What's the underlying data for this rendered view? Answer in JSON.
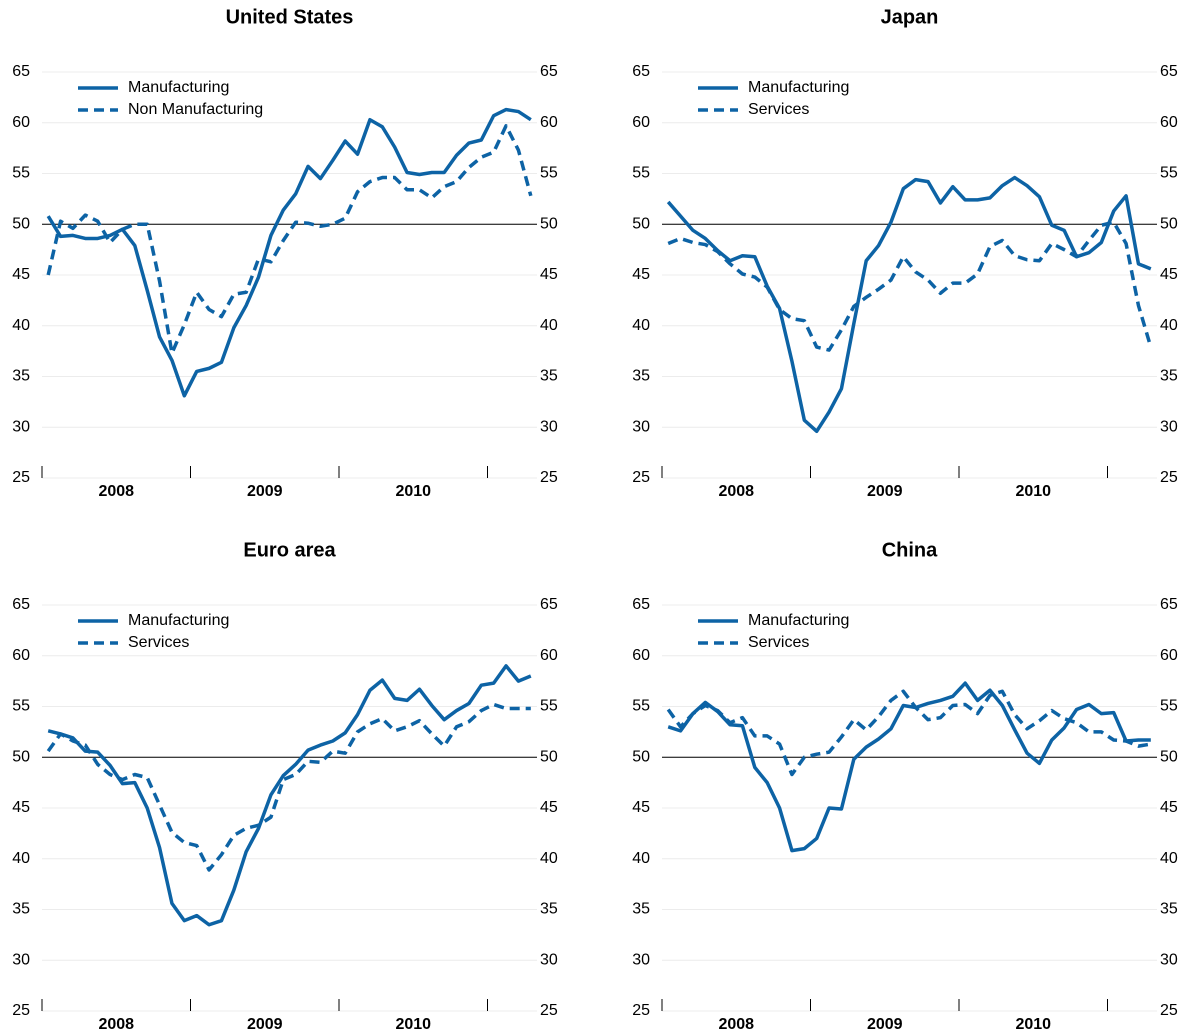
{
  "chart_data": [
    {
      "type": "line",
      "title": "United States",
      "categories": [
        null,
        null,
        null,
        null,
        null,
        null,
        "2008",
        null,
        null,
        null,
        null,
        null,
        null,
        null,
        null,
        null,
        null,
        null,
        "2009",
        null,
        null,
        null,
        null,
        null,
        null,
        null,
        null,
        null,
        null,
        null,
        "2010",
        null,
        null,
        null,
        null,
        null,
        null,
        null,
        null,
        null
      ],
      "series": [
        {
          "name": "Manufacturing",
          "color": "#0d63a5",
          "dash": false,
          "values": [
            50.8,
            48.8,
            48.9,
            48.6,
            48.6,
            48.9,
            49.5,
            47.9,
            43.5,
            38.9,
            36.6,
            33.1,
            35.5,
            35.8,
            36.4,
            39.8,
            42.0,
            44.8,
            48.9,
            51.4,
            53.0,
            55.7,
            54.5,
            56.3,
            58.2,
            56.9,
            60.3,
            59.6,
            57.6,
            55.1,
            54.9,
            55.1,
            55.1,
            56.8,
            58.0,
            58.3,
            60.7,
            61.3,
            61.1,
            60.3
          ]
        },
        {
          "name": "Non Manufacturing",
          "color": "#0d63a5",
          "dash": true,
          "values": [
            45.0,
            50.3,
            49.6,
            50.9,
            50.3,
            48.2,
            49.5,
            50.0,
            50.0,
            44.4,
            37.3,
            40.1,
            43.3,
            41.6,
            40.9,
            43.1,
            43.3,
            46.6,
            46.3,
            48.4,
            50.2,
            50.1,
            49.8,
            50.0,
            50.6,
            53.2,
            54.2,
            54.6,
            54.6,
            53.4,
            53.4,
            52.6,
            53.7,
            54.2,
            55.6,
            56.6,
            57.1,
            59.7,
            57.3,
            52.8
          ]
        }
      ],
      "ylim": [
        25,
        65
      ],
      "yticks": [
        25,
        30,
        35,
        40,
        45,
        50,
        55,
        60,
        65
      ],
      "y2lim": [
        25,
        65
      ],
      "y2ticks": [
        25,
        30,
        35,
        40,
        45,
        50,
        55,
        60,
        65
      ],
      "reference_line": 50,
      "grid": true,
      "legend": "upper left"
    },
    {
      "type": "line",
      "title": "Japan",
      "categories": [
        null,
        null,
        null,
        null,
        null,
        null,
        "2008",
        null,
        null,
        null,
        null,
        null,
        null,
        null,
        null,
        null,
        null,
        null,
        "2009",
        null,
        null,
        null,
        null,
        null,
        null,
        null,
        null,
        null,
        null,
        null,
        "2010",
        null,
        null,
        null,
        null,
        null,
        null,
        null,
        null,
        null
      ],
      "series": [
        {
          "name": "Manufacturing",
          "color": "#0d63a5",
          "dash": false,
          "values": [
            52.2,
            50.8,
            49.4,
            48.6,
            47.4,
            46.4,
            46.9,
            46.8,
            43.9,
            41.7,
            36.5,
            30.7,
            29.6,
            31.5,
            33.8,
            40.2,
            46.4,
            47.9,
            50.2,
            53.5,
            54.4,
            54.2,
            52.1,
            53.7,
            52.4,
            52.4,
            52.6,
            53.8,
            54.6,
            53.8,
            52.7,
            49.9,
            49.4,
            46.8,
            47.2,
            48.2,
            51.3,
            52.8,
            46.1,
            45.6
          ]
        },
        {
          "name": "Services",
          "color": "#0d63a5",
          "dash": true,
          "values": [
            48.1,
            48.6,
            48.2,
            48.0,
            47.3,
            46.1,
            45.1,
            44.8,
            43.8,
            41.6,
            40.7,
            40.5,
            37.9,
            37.6,
            39.6,
            41.9,
            42.8,
            43.6,
            44.5,
            46.8,
            45.3,
            44.5,
            43.2,
            44.2,
            44.2,
            45.1,
            47.8,
            48.4,
            46.9,
            46.5,
            46.4,
            48.1,
            47.5,
            46.8,
            48.4,
            49.9,
            50.2,
            48.1,
            42.0,
            37.9
          ]
        }
      ],
      "ylim": [
        25,
        65
      ],
      "yticks": [
        25,
        30,
        35,
        40,
        45,
        50,
        55,
        60,
        65
      ],
      "y2lim": [
        25,
        65
      ],
      "y2ticks": [
        25,
        30,
        35,
        40,
        45,
        50,
        55,
        60,
        65
      ],
      "reference_line": 50,
      "grid": true,
      "legend": "upper left"
    },
    {
      "type": "line",
      "title": "Euro area",
      "categories": [
        null,
        null,
        null,
        null,
        null,
        null,
        "2008",
        null,
        null,
        null,
        null,
        null,
        null,
        null,
        null,
        null,
        null,
        null,
        "2009",
        null,
        null,
        null,
        null,
        null,
        null,
        null,
        null,
        null,
        null,
        null,
        "2010",
        null,
        null,
        null,
        null,
        null,
        null,
        null,
        null,
        null
      ],
      "series": [
        {
          "name": "Manufacturing",
          "color": "#0d63a5",
          "dash": false,
          "values": [
            52.6,
            52.3,
            51.9,
            50.6,
            50.5,
            49.2,
            47.4,
            47.5,
            45.0,
            41.1,
            35.6,
            33.9,
            34.4,
            33.5,
            33.9,
            36.9,
            40.7,
            43.0,
            46.3,
            48.2,
            49.3,
            50.7,
            51.2,
            51.6,
            52.4,
            54.2,
            56.6,
            57.6,
            55.8,
            55.6,
            56.7,
            55.1,
            53.7,
            54.6,
            55.3,
            57.1,
            57.3,
            59.0,
            57.5,
            58.0
          ]
        },
        {
          "name": "Services",
          "color": "#0d63a5",
          "dash": true,
          "values": [
            50.6,
            52.3,
            51.6,
            51.2,
            49.3,
            48.3,
            47.8,
            48.3,
            48.0,
            45.3,
            42.6,
            41.6,
            41.3,
            38.9,
            40.4,
            42.3,
            43.0,
            43.3,
            44.1,
            47.8,
            48.3,
            49.6,
            49.5,
            50.6,
            50.4,
            52.5,
            53.3,
            53.8,
            52.6,
            53.0,
            53.6,
            52.3,
            51.1,
            53.0,
            53.5,
            54.6,
            55.2,
            54.8,
            54.8,
            54.8
          ]
        }
      ],
      "ylim": [
        25,
        65
      ],
      "yticks": [
        25,
        30,
        35,
        40,
        45,
        50,
        55,
        60,
        65
      ],
      "y2lim": [
        25,
        65
      ],
      "y2ticks": [
        25,
        30,
        35,
        40,
        45,
        50,
        55,
        60,
        65
      ],
      "reference_line": 50,
      "grid": true,
      "legend": "upper left"
    },
    {
      "type": "line",
      "title": "China",
      "categories": [
        null,
        null,
        null,
        null,
        null,
        null,
        "2008",
        null,
        null,
        null,
        null,
        null,
        null,
        null,
        null,
        null,
        null,
        null,
        "2009",
        null,
        null,
        null,
        null,
        null,
        null,
        null,
        null,
        null,
        null,
        null,
        "2010",
        null,
        null,
        null,
        null,
        null,
        null,
        null,
        null,
        null
      ],
      "series": [
        {
          "name": "Manufacturing",
          "color": "#0d63a5",
          "dash": false,
          "values": [
            53.0,
            52.6,
            54.3,
            55.4,
            54.5,
            53.2,
            53.1,
            49.0,
            47.5,
            45.0,
            40.8,
            41.0,
            42.0,
            45.0,
            44.9,
            49.8,
            51.0,
            51.8,
            52.8,
            55.1,
            54.9,
            55.3,
            55.6,
            56.0,
            57.3,
            55.6,
            56.6,
            55.1,
            52.7,
            50.4,
            49.4,
            51.7,
            52.9,
            54.7,
            55.2,
            54.3,
            54.4,
            51.6,
            51.7,
            51.7
          ]
        },
        {
          "name": "Services",
          "color": "#0d63a5",
          "dash": true,
          "values": [
            54.7,
            53.0,
            54.3,
            55.1,
            54.6,
            53.4,
            53.9,
            52.1,
            52.1,
            51.3,
            48.3,
            50.0,
            50.3,
            50.5,
            52.0,
            53.7,
            52.7,
            54.0,
            55.6,
            56.5,
            54.9,
            53.7,
            53.9,
            55.1,
            55.2,
            54.3,
            56.1,
            56.5,
            54.2,
            52.8,
            53.6,
            54.6,
            53.8,
            53.4,
            52.5,
            52.5,
            51.7,
            51.6,
            51.1,
            51.3
          ]
        }
      ],
      "ylim": [
        25,
        65
      ],
      "yticks": [
        25,
        30,
        35,
        40,
        45,
        50,
        55,
        60,
        65
      ],
      "y2lim": [
        25,
        65
      ],
      "y2ticks": [
        25,
        30,
        35,
        40,
        45,
        50,
        55,
        60,
        65
      ],
      "reference_line": 50,
      "grid": true,
      "legend": "upper left"
    }
  ]
}
